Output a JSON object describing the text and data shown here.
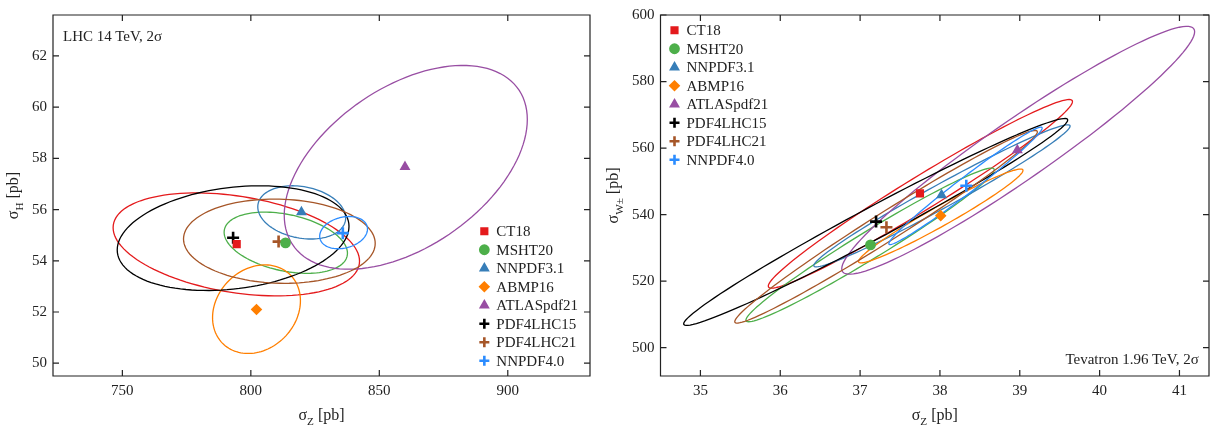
{
  "chart_data": [
    {
      "type": "scatter",
      "xlabel": "σ$_{Z}$ [pb]",
      "ylabel": "σ$_{H}$ [pb]",
      "annotations": [
        "LHC 14 TeV, 2σ"
      ],
      "xlim": [
        723,
        932
      ],
      "ylim": [
        49.5,
        63.6
      ],
      "xticks": [
        750,
        800,
        850,
        900
      ],
      "yticks": [
        50,
        52,
        54,
        56,
        58,
        60,
        62
      ],
      "legend": "bottom right",
      "series": [
        {
          "name": "CT18",
          "color": "#e41a1c",
          "marker": "square",
          "x": [
            794.5
          ],
          "values": [
            54.65
          ]
        },
        {
          "name": "MSHT20",
          "color": "#4daf4a",
          "marker": "circle",
          "x": [
            813.5
          ],
          "values": [
            54.7
          ]
        },
        {
          "name": "NNPDF3.1",
          "color": "#377eb8",
          "marker": "triangle",
          "x": [
            819.7
          ],
          "values": [
            55.9
          ]
        },
        {
          "name": "ABMP16",
          "color": "#ff7f00",
          "marker": "diamond",
          "x": [
            802.2
          ],
          "values": [
            52.1
          ]
        },
        {
          "name": "ATLASpdf21",
          "color": "#984ea3",
          "marker": "triangle",
          "x": [
            860.0
          ],
          "values": [
            57.67
          ]
        },
        {
          "name": "PDF4LHC15",
          "color": "#000000",
          "marker": "cross",
          "x": [
            793.1
          ],
          "values": [
            54.9
          ]
        },
        {
          "name": "PDF4LHC21",
          "color": "#a65628",
          "marker": "cross",
          "x": [
            810.8
          ],
          "values": [
            54.75
          ]
        },
        {
          "name": "NNPDF4.0",
          "color": "#2b8cff",
          "marker": "cross",
          "x": [
            835.8
          ],
          "values": [
            55.08
          ]
        }
      ]
    },
    {
      "type": "scatter",
      "xlabel": "σ$_{Z}$ [pb]",
      "ylabel": "σ$_{W±}$ [pb]",
      "annotations": [
        "Tevatron 1.96 TeV, 2σ"
      ],
      "xlim": [
        34.5,
        41.37
      ],
      "ylim": [
        491.5,
        600
      ],
      "xticks": [
        35,
        36,
        37,
        38,
        39,
        40,
        41
      ],
      "yticks": [
        500,
        520,
        540,
        560,
        580,
        600
      ],
      "legend": "top left",
      "series": [
        {
          "name": "CT18",
          "color": "#e41a1c",
          "marker": "square",
          "x": [
            37.75
          ],
          "values": [
            546.4
          ]
        },
        {
          "name": "MSHT20",
          "color": "#4daf4a",
          "marker": "circle",
          "x": [
            37.13
          ],
          "values": [
            530.9
          ]
        },
        {
          "name": "NNPDF3.1",
          "color": "#377eb8",
          "marker": "triangle",
          "x": [
            38.02
          ],
          "values": [
            545.9
          ]
        },
        {
          "name": "ABMP16",
          "color": "#ff7f00",
          "marker": "diamond",
          "x": [
            38.01
          ],
          "values": [
            539.7
          ]
        },
        {
          "name": "ATLASpdf21",
          "color": "#984ea3",
          "marker": "triangle",
          "x": [
            38.97
          ],
          "values": [
            559.4
          ]
        },
        {
          "name": "PDF4LHC15",
          "color": "#000000",
          "marker": "cross",
          "x": [
            37.2
          ],
          "values": [
            537.9
          ]
        },
        {
          "name": "PDF4LHC21",
          "color": "#a65628",
          "marker": "cross",
          "x": [
            37.33
          ],
          "values": [
            536.2
          ]
        },
        {
          "name": "NNPDF4.0",
          "color": "#2b8cff",
          "marker": "cross",
          "x": [
            38.33
          ],
          "values": [
            548.7
          ]
        }
      ]
    }
  ]
}
